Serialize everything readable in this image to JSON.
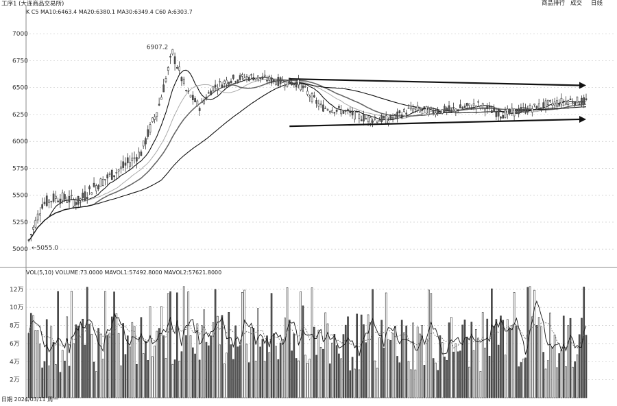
{
  "window": {
    "left_title": "工序1",
    "left_title2": "(大连商品交易所)",
    "buttons": [
      "商品排行",
      "成交",
      "日线"
    ]
  },
  "price_panel": {
    "legend": "K  C5  MA10:6463.4  MA20:6380.1  MA30:6349.4  C60  A:6303.7",
    "high_label": "6907.2",
    "low_label": "5055.0",
    "y_ticks": [
      "5000",
      "5250",
      "5500",
      "5750",
      "6000",
      "6250",
      "6500",
      "6750",
      "7000"
    ],
    "y_range": [
      4880,
      7160
    ]
  },
  "volume_panel": {
    "legend": "VOL(5,10)  VOLUME:73.0000  MAVOL1:57492.8000  MAVOL2:57621.8000",
    "y_ticks": [
      "2万",
      "4万",
      "6万",
      "8万",
      "10万",
      "12万"
    ],
    "y_range": [
      0,
      135000
    ]
  },
  "footer_text": "日期 2024/03/11  周一",
  "colors": {
    "up": "#ffffff",
    "down": "#555555",
    "ma_dark": "#111111",
    "ma_mid": "#666666",
    "ma_light": "#aaaaaa",
    "grid": "#bbbbbb",
    "arrow": "#111111"
  },
  "chart_data": {
    "type": "candlestick",
    "anchors": [
      [
        0,
        5080
      ],
      [
        6,
        5420
      ],
      [
        12,
        5480
      ],
      [
        16,
        5470
      ],
      [
        22,
        5440
      ],
      [
        28,
        5560
      ],
      [
        34,
        5650
      ],
      [
        42,
        5760
      ],
      [
        50,
        5900
      ],
      [
        58,
        6340
      ],
      [
        64,
        6820
      ],
      [
        70,
        6470
      ],
      [
        76,
        6320
      ],
      [
        82,
        6500
      ],
      [
        90,
        6580
      ],
      [
        100,
        6600
      ],
      [
        110,
        6560
      ],
      [
        120,
        6540
      ],
      [
        130,
        6320
      ],
      [
        140,
        6280
      ],
      [
        150,
        6210
      ],
      [
        160,
        6200
      ],
      [
        170,
        6300
      ],
      [
        180,
        6280
      ],
      [
        190,
        6300
      ],
      [
        200,
        6340
      ],
      [
        210,
        6250
      ],
      [
        220,
        6290
      ],
      [
        230,
        6340
      ],
      [
        240,
        6380
      ],
      [
        248,
        6370
      ]
    ],
    "bars": 249,
    "channel_upper": [
      [
        116,
        6580
      ],
      [
        248,
        6520
      ]
    ],
    "channel_lower": [
      [
        116,
        6140
      ],
      [
        248,
        6205
      ]
    ],
    "ma_windows": [
      10,
      20,
      30,
      60
    ],
    "volume_range": [
      28000,
      123000
    ]
  }
}
